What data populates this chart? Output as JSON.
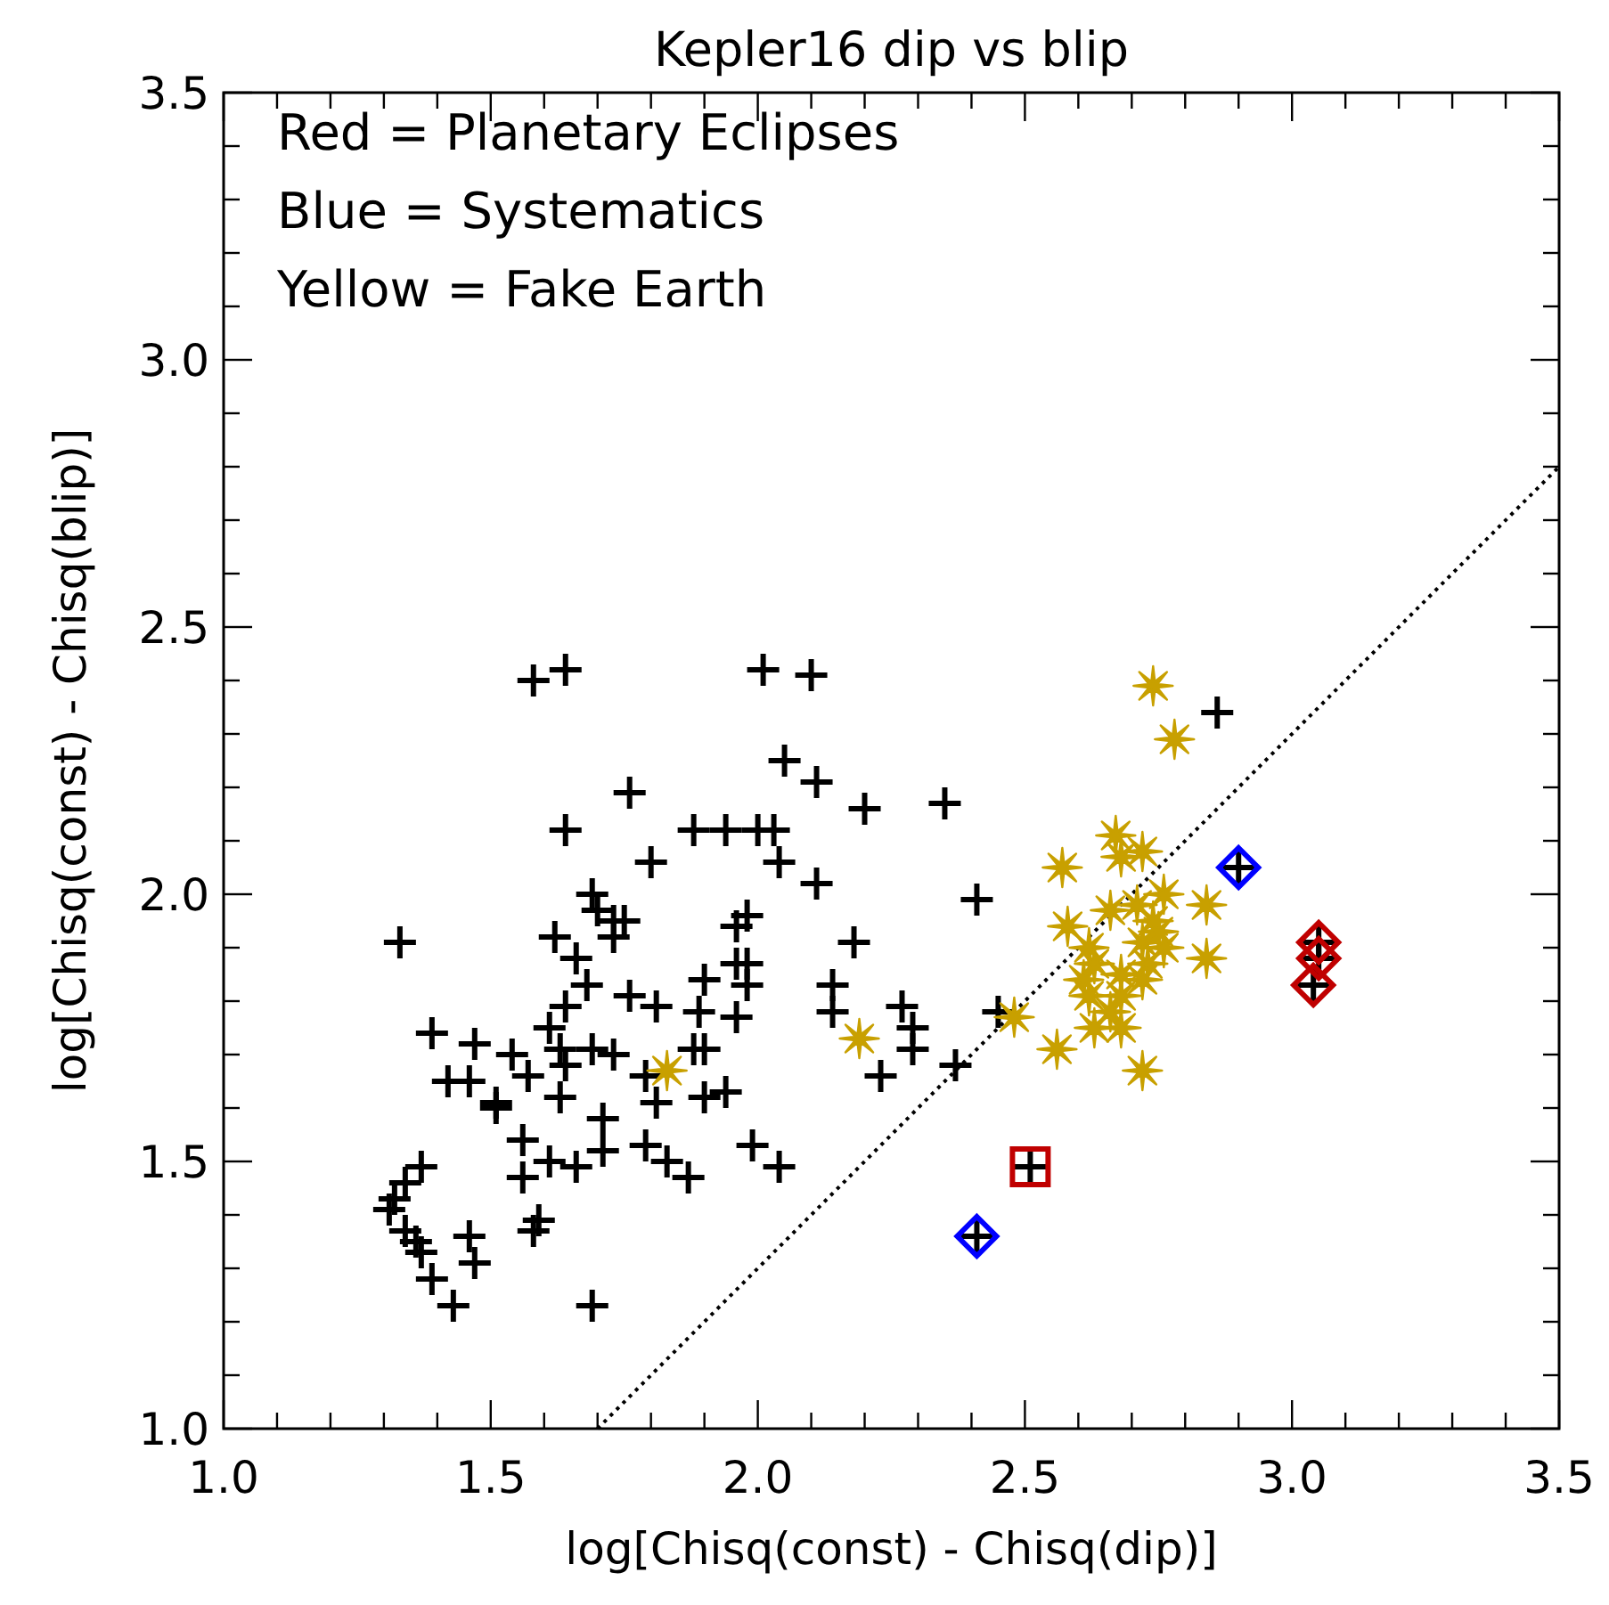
{
  "chart_data": {
    "type": "scatter",
    "title": "Kepler16 dip vs blip",
    "xlabel": "log[Chisq(const) - Chisq(dip)]",
    "ylabel": "log[Chisq(const) - Chisq(blip)]",
    "annotations": [
      "Red = Planetary Eclipses",
      "Blue = Systematics",
      "Yellow = Fake Earth"
    ],
    "xlim": [
      1,
      3.5
    ],
    "ylim": [
      1,
      3.5
    ],
    "xticks": [
      {
        "value": 1,
        "label": "1.0"
      },
      {
        "value": 1.1,
        "label": null
      },
      {
        "value": 1.2,
        "label": null
      },
      {
        "value": 1.3,
        "label": null
      },
      {
        "value": 1.4,
        "label": null
      },
      {
        "value": 1.5,
        "label": "1.5"
      },
      {
        "value": 1.6,
        "label": null
      },
      {
        "value": 1.7,
        "label": null
      },
      {
        "value": 1.8,
        "label": null
      },
      {
        "value": 1.9,
        "label": null
      },
      {
        "value": 2,
        "label": "2.0"
      },
      {
        "value": 2.1,
        "label": null
      },
      {
        "value": 2.2,
        "label": null
      },
      {
        "value": 2.3,
        "label": null
      },
      {
        "value": 2.4,
        "label": null
      },
      {
        "value": 2.5,
        "label": "2.5"
      },
      {
        "value": 2.6,
        "label": null
      },
      {
        "value": 2.7,
        "label": null
      },
      {
        "value": 2.8,
        "label": null
      },
      {
        "value": 2.9,
        "label": null
      },
      {
        "value": 3,
        "label": "3.0"
      },
      {
        "value": 3.1,
        "label": null
      },
      {
        "value": 3.2,
        "label": null
      },
      {
        "value": 3.3,
        "label": null
      },
      {
        "value": 3.4,
        "label": null
      },
      {
        "value": 3.5,
        "label": "3.5"
      }
    ],
    "yticks": [
      {
        "value": 1,
        "label": "1.0"
      },
      {
        "value": 1.1,
        "label": null
      },
      {
        "value": 1.2,
        "label": null
      },
      {
        "value": 1.3,
        "label": null
      },
      {
        "value": 1.4,
        "label": null
      },
      {
        "value": 1.5,
        "label": "1.5"
      },
      {
        "value": 1.6,
        "label": null
      },
      {
        "value": 1.7,
        "label": null
      },
      {
        "value": 1.8,
        "label": null
      },
      {
        "value": 1.9,
        "label": null
      },
      {
        "value": 2,
        "label": "2.0"
      },
      {
        "value": 2.1,
        "label": null
      },
      {
        "value": 2.2,
        "label": null
      },
      {
        "value": 2.3,
        "label": null
      },
      {
        "value": 2.4,
        "label": null
      },
      {
        "value": 2.5,
        "label": "2.5"
      },
      {
        "value": 2.6,
        "label": null
      },
      {
        "value": 2.7,
        "label": null
      },
      {
        "value": 2.8,
        "label": null
      },
      {
        "value": 2.9,
        "label": null
      },
      {
        "value": 3,
        "label": "3.0"
      },
      {
        "value": 3.1,
        "label": null
      },
      {
        "value": 3.2,
        "label": null
      },
      {
        "value": 3.3,
        "label": null
      },
      {
        "value": 3.4,
        "label": null
      },
      {
        "value": 3.5,
        "label": "3.5"
      }
    ],
    "grid": false,
    "series": [
      {
        "type": "line",
        "color": "#000000",
        "marker": "none",
        "line_style": "dotted",
        "x": [
          1.7,
          3.5
        ],
        "values": [
          1.0,
          2.8
        ]
      },
      {
        "color": "#000000",
        "marker": "cross",
        "x": [
          1.58,
          1.64,
          1.76,
          1.64,
          1.8,
          1.88,
          1.94,
          1.69,
          1.7,
          1.73,
          1.75,
          1.73,
          1.33,
          1.62,
          1.66,
          1.68,
          1.76,
          1.81,
          1.9,
          1.64,
          1.89,
          1.39,
          1.47,
          1.54,
          1.61,
          1.63,
          1.64,
          1.69,
          1.73,
          1.88,
          1.9,
          1.42,
          1.46,
          1.51,
          1.51,
          1.57,
          1.63,
          1.71,
          1.81,
          1.79,
          1.9,
          1.56,
          1.56,
          1.61,
          1.66,
          1.71,
          1.79,
          1.83,
          1.87,
          1.37,
          1.34,
          1.32,
          1.31,
          1.34,
          1.36,
          1.37,
          1.46,
          1.47,
          1.39,
          1.43,
          1.59,
          1.58,
          1.69,
          2.01,
          2.1,
          2.05,
          2.11,
          2.2,
          2.35,
          2.0,
          2.03,
          2.04,
          2.11,
          2.41,
          1.96,
          1.98,
          2.18,
          1.96,
          1.98,
          1.98,
          2.14,
          2.14,
          2.27,
          2.29,
          2.29,
          1.96,
          1.94,
          2.23,
          2.37,
          1.99,
          2.04,
          2.45,
          2.86,
          2.51,
          2.41,
          2.9,
          3.05,
          3.05,
          3.04
        ],
        "values": [
          2.4,
          2.42,
          2.19,
          2.12,
          2.06,
          2.12,
          2.12,
          2.0,
          1.97,
          1.95,
          1.95,
          1.92,
          1.91,
          1.92,
          1.88,
          1.83,
          1.81,
          1.79,
          1.84,
          1.79,
          1.78,
          1.74,
          1.72,
          1.7,
          1.75,
          1.71,
          1.68,
          1.71,
          1.7,
          1.71,
          1.71,
          1.65,
          1.65,
          1.61,
          1.6,
          1.66,
          1.62,
          1.58,
          1.61,
          1.66,
          1.62,
          1.54,
          1.47,
          1.5,
          1.49,
          1.52,
          1.53,
          1.5,
          1.47,
          1.49,
          1.46,
          1.43,
          1.41,
          1.37,
          1.35,
          1.33,
          1.36,
          1.31,
          1.28,
          1.23,
          1.39,
          1.37,
          1.23,
          2.42,
          2.41,
          2.25,
          2.21,
          2.16,
          2.17,
          2.12,
          2.12,
          2.06,
          2.02,
          1.99,
          1.94,
          1.96,
          1.91,
          1.87,
          1.87,
          1.83,
          1.83,
          1.78,
          1.79,
          1.75,
          1.71,
          1.77,
          1.63,
          1.66,
          1.68,
          1.53,
          1.49,
          1.78,
          2.34,
          1.49,
          1.36,
          2.05,
          1.91,
          1.88,
          1.83
        ]
      },
      {
        "color": "#c8a000",
        "marker": "star",
        "x": [
          1.83,
          2.19,
          2.48,
          2.74,
          2.78,
          2.67,
          2.72,
          2.68,
          2.57,
          2.84,
          2.66,
          2.71,
          2.76,
          2.58,
          2.84,
          2.74,
          2.62,
          2.72,
          2.76,
          2.63,
          2.68,
          2.61,
          2.72,
          2.62,
          2.68,
          2.66,
          2.63,
          2.68,
          2.56,
          2.72,
          2.73,
          2.75
        ],
        "values": [
          1.67,
          1.73,
          1.77,
          2.39,
          2.29,
          2.11,
          2.08,
          2.07,
          2.05,
          1.98,
          1.97,
          1.98,
          2.0,
          1.94,
          1.88,
          1.95,
          1.9,
          1.91,
          1.9,
          1.87,
          1.85,
          1.84,
          1.84,
          1.81,
          1.81,
          1.78,
          1.75,
          1.75,
          1.71,
          1.67,
          1.87,
          1.93
        ]
      },
      {
        "color": "#c00000",
        "marker": "square",
        "x": [
          2.51
        ],
        "values": [
          1.49
        ]
      },
      {
        "color": "#c00000",
        "marker": "diamond",
        "x": [
          3.05,
          3.05,
          3.04
        ],
        "values": [
          1.91,
          1.88,
          1.83
        ]
      },
      {
        "color": "#0000ff",
        "marker": "diamond",
        "x": [
          2.41,
          2.9
        ],
        "values": [
          1.36,
          2.05
        ]
      }
    ]
  }
}
